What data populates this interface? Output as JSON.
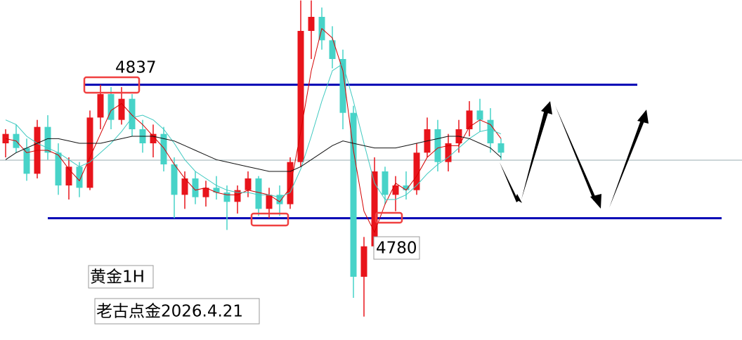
{
  "chart_data": {
    "type": "candlestick",
    "ylim": [
      4728,
      4873.2
    ],
    "up_color": "#e8141b",
    "down_color": "#47d3c8",
    "open": [
      4812,
      4816,
      4810,
      4799,
      4819,
      4808,
      4794,
      4802,
      4793,
      4823,
      4833,
      4822,
      4831,
      4818,
      4812,
      4816,
      4803,
      4790,
      4797,
      4789,
      4793,
      4791,
      4787,
      4792,
      4797,
      4784,
      4790,
      4786,
      4804,
      4860,
      4866,
      4856,
      4848,
      4825,
      4755,
      4768,
      4800,
      4790,
      4794,
      4792,
      4808,
      4818,
      4804,
      4812,
      4818,
      4826,
      4822,
      4812
    ],
    "high": [
      4818,
      4820,
      4814,
      4822,
      4824,
      4812,
      4806,
      4804,
      4826,
      4837,
      4836,
      4836,
      4833,
      4822,
      4820,
      4819,
      4806,
      4800,
      4800,
      4796,
      4798,
      4794,
      4794,
      4800,
      4798,
      4793,
      4794,
      4806,
      4873,
      4873,
      4870,
      4862,
      4852,
      4828,
      4772,
      4806,
      4802,
      4798,
      4800,
      4812,
      4823,
      4822,
      4816,
      4822,
      4830,
      4831,
      4827,
      4814
    ],
    "low": [
      4806,
      4808,
      4796,
      4797,
      4805,
      4790,
      4788,
      4789,
      4792,
      4818,
      4818,
      4820,
      4815,
      4808,
      4806,
      4800,
      4780,
      4784,
      4786,
      4785,
      4788,
      4775,
      4782,
      4789,
      4781,
      4780,
      4781,
      4784,
      4802,
      4848,
      4852,
      4844,
      4818,
      4746,
      4738,
      4766,
      4786,
      4783,
      4788,
      4790,
      4806,
      4800,
      4800,
      4808,
      4815,
      4817,
      4808,
      4805
    ],
    "close": [
      4816,
      4810,
      4799,
      4819,
      4808,
      4794,
      4802,
      4793,
      4823,
      4833,
      4822,
      4831,
      4818,
      4812,
      4816,
      4803,
      4790,
      4797,
      4789,
      4793,
      4791,
      4787,
      4792,
      4797,
      4784,
      4790,
      4786,
      4804,
      4860,
      4866,
      4856,
      4848,
      4825,
      4755,
      4768,
      4800,
      4790,
      4794,
      4792,
      4808,
      4818,
      4804,
      4812,
      4818,
      4826,
      4822,
      4812,
      4808
    ],
    "lines": [
      {
        "color": "#d40000",
        "values": [
          4814,
          4813,
          4808,
          4809,
          4809,
          4807,
          4801,
          4796,
          4806,
          4816,
          4826,
          4829,
          4824,
          4820,
          4815,
          4810,
          4803,
          4797,
          4792,
          4793,
          4791,
          4790,
          4790,
          4792,
          4791,
          4790,
          4787,
          4793,
          4817,
          4843,
          4861,
          4857,
          4843,
          4809,
          4783,
          4774,
          4786,
          4795,
          4792,
          4798,
          4806,
          4810,
          4811,
          4811,
          4819,
          4822,
          4820,
          4814
        ]
      },
      {
        "color": "#3fc9c0",
        "values": [
          4822,
          4820,
          4815,
          4812,
          4810,
          4808,
          4805,
          4802,
          4804,
          4808,
          4812,
          4817,
          4823,
          4824,
          4822,
          4818,
          4812,
          4805,
          4800,
          4797,
          4794,
          4792,
          4791,
          4791,
          4790,
          4790,
          4789,
          4791,
          4801,
          4815,
          4830,
          4843,
          4846,
          4830,
          4812,
          4795,
          4788,
          4788,
          4790,
          4794,
          4799,
          4803,
          4806,
          4810,
          4814,
          4817,
          4818,
          4816
        ]
      },
      {
        "color": "#111111",
        "values": [
          4805,
          4808,
          4810,
          4812,
          4814,
          4814,
          4813,
          4812,
          4812,
          4812,
          4813,
          4814,
          4815,
          4815,
          4815,
          4814,
          4813,
          4811,
          4809,
          4807,
          4805,
          4804,
          4803,
          4802,
          4801,
          4800,
          4800,
          4800,
          4802,
          4805,
          4808,
          4811,
          4813,
          4812,
          4811,
          4810,
          4810,
          4810,
          4811,
          4812,
          4813,
          4814,
          4815,
          4815,
          4814,
          4812,
          4810,
          4806
        ]
      }
    ],
    "levels": [
      4837,
      4780
    ],
    "level_color": "#0000b4",
    "annotations": [
      "黄金1H",
      "老古点金2026.4.21"
    ]
  }
}
